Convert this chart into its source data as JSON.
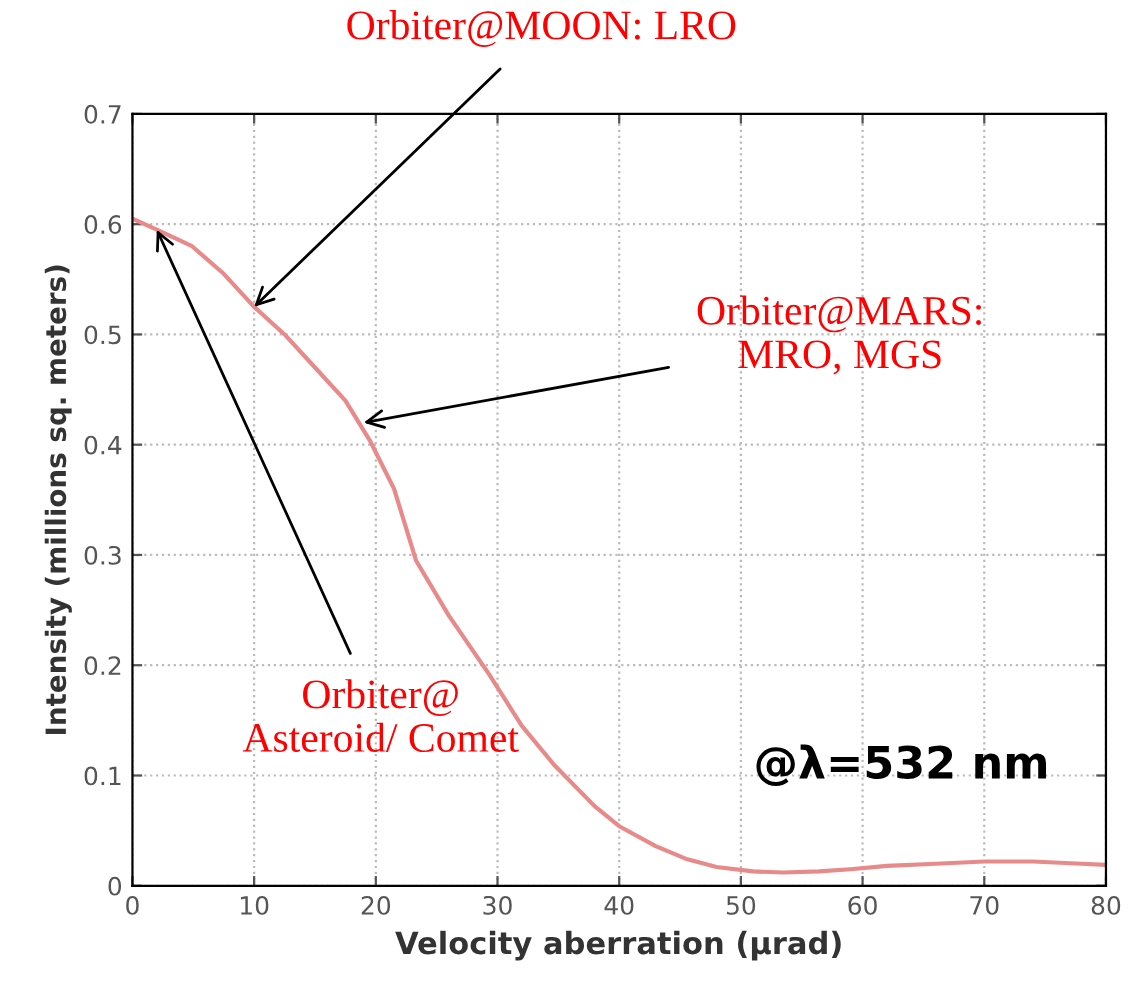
{
  "chart_data": {
    "type": "line",
    "xlabel": "Velocity aberration (μrad)",
    "ylabel": "Intensity (millions sq. meters)",
    "x": [
      0,
      2,
      4.9,
      7.5,
      10,
      12.5,
      15,
      17.5,
      19.5,
      21.5,
      23.3,
      26,
      29.3,
      32,
      34.7,
      38,
      40,
      43,
      45.6,
      48,
      51,
      53.5,
      56.4,
      59,
      62,
      66,
      70,
      74,
      78,
      80
    ],
    "series": [
      {
        "color": "#e88a8a",
        "values": [
          0.605,
          0.595,
          0.58,
          0.555,
          0.525,
          0.5,
          0.47,
          0.44,
          0.404,
          0.36,
          0.295,
          0.245,
          0.192,
          0.145,
          0.109,
          0.072,
          0.054,
          0.036,
          0.024,
          0.017,
          0.013,
          0.012,
          0.013,
          0.015,
          0.018,
          0.02,
          0.022,
          0.022,
          0.02,
          0.019
        ]
      }
    ],
    "xlim": [
      0,
      80
    ],
    "xticks": [
      0,
      10,
      20,
      30,
      40,
      50,
      60,
      70,
      80
    ],
    "ylim": [
      0,
      0.7
    ],
    "yticks": [
      0,
      0.1,
      0.2,
      0.3,
      0.4,
      0.5,
      0.6,
      0.7
    ],
    "grid": true,
    "marker": "none",
    "line_style": "solid",
    "annotations": [
      {
        "text": "Orbiter@MOON: LRO",
        "x": 10,
        "y": 0.525
      },
      {
        "text": "Orbiter@MARS:\nMRO, MGS",
        "x": 19,
        "y": 0.42
      },
      {
        "text": "Orbiter@\nAsteroid/ Comet",
        "x": 2,
        "y": 0.595
      },
      "@λ=532 nm"
    ]
  }
}
